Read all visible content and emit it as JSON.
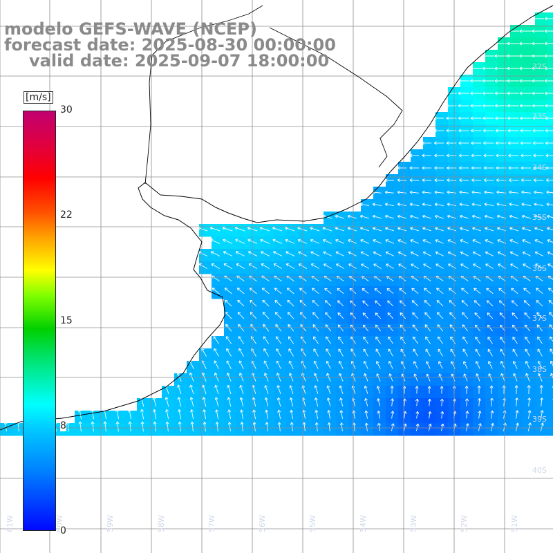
{
  "title": {
    "line1": "modelo GEFS-WAVE (NCEP)",
    "line2": "forecast date: 2025-08-30 00:00:00",
    "line3": "valid date: 2025-09-07 18:00:00"
  },
  "colorbar": {
    "unit": "[m/s]",
    "ticks": [
      "30",
      "22",
      "15",
      "8",
      "0"
    ],
    "tick_values": [
      30,
      22,
      15,
      8,
      0
    ],
    "min": 0,
    "max": 30,
    "colors": [
      "#0008ff",
      "#0080ff",
      "#00c8ff",
      "#00ffff",
      "#00d000",
      "#ffff00",
      "#ff0000",
      "#c00070"
    ]
  },
  "map": {
    "field": "wind speed with direction arrows",
    "land_color": "#ffffff",
    "coastline_color": "#000000",
    "grid_color": "#888888",
    "arrow_color": "#ffffff",
    "lat_labels": [
      "32S",
      "33S",
      "34S",
      "35S",
      "36S",
      "37S",
      "38S",
      "39S",
      "40S"
    ],
    "lon_labels": [
      "61W",
      "60W",
      "59W",
      "58W",
      "57W",
      "56W",
      "55W",
      "54W",
      "53W",
      "52W",
      "51W"
    ]
  }
}
